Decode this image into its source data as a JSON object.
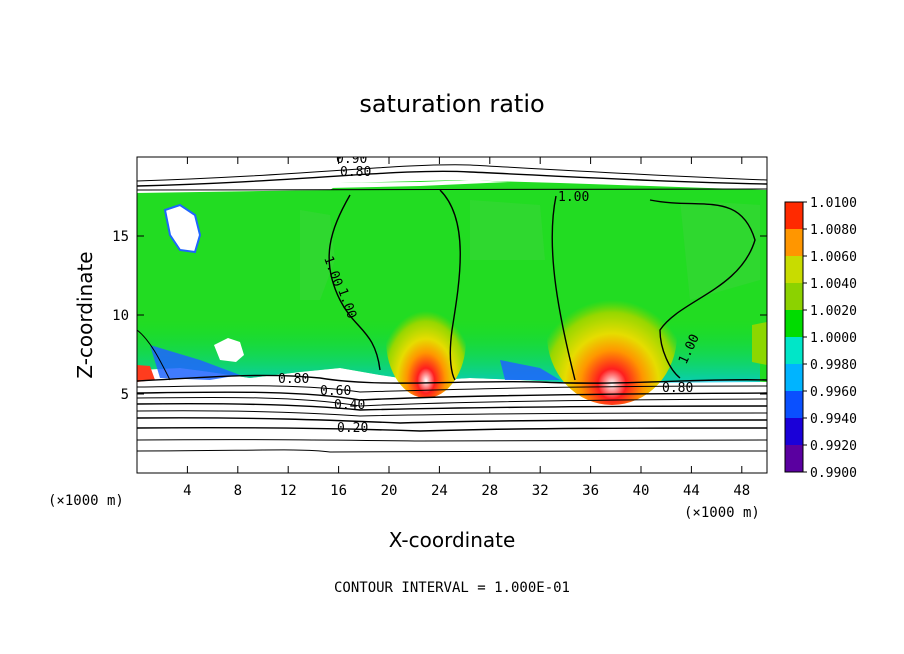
{
  "chart_data": {
    "type": "heatmap",
    "title": "saturation ratio",
    "xlabel": "X-coordinate",
    "ylabel": "Z-coordinate",
    "x_unit": "(×1000 m)",
    "y_unit": "(×1000 m)",
    "xlim": [
      0,
      50
    ],
    "ylim": [
      0,
      20
    ],
    "x_ticks": [
      4,
      8,
      12,
      16,
      20,
      24,
      28,
      32,
      36,
      40,
      44,
      48
    ],
    "y_ticks": [
      5,
      10,
      15
    ],
    "colorbar": {
      "ticks": [
        "0.9900",
        "0.9920",
        "0.9940",
        "0.9960",
        "0.9980",
        "1.0000",
        "1.0020",
        "1.0040",
        "1.0060",
        "1.0080",
        "1.0100"
      ],
      "colors": [
        "#5a00a0",
        "#1a00d8",
        "#0a50ff",
        "#00b4ff",
        "#00e6c8",
        "#00dc00",
        "#8cd200",
        "#c8dc00",
        "#ff9600",
        "#ff2a00",
        "#ff8c8c"
      ]
    },
    "contour_labels": [
      "0.90",
      "0.80",
      "1.00",
      "1.00",
      "1.00",
      "0.80",
      "0.60",
      "0.40",
      "0.20",
      "0.80",
      "1.00"
    ],
    "contour_interval": "CONTOUR INTERVAL = 1.000E-01"
  }
}
